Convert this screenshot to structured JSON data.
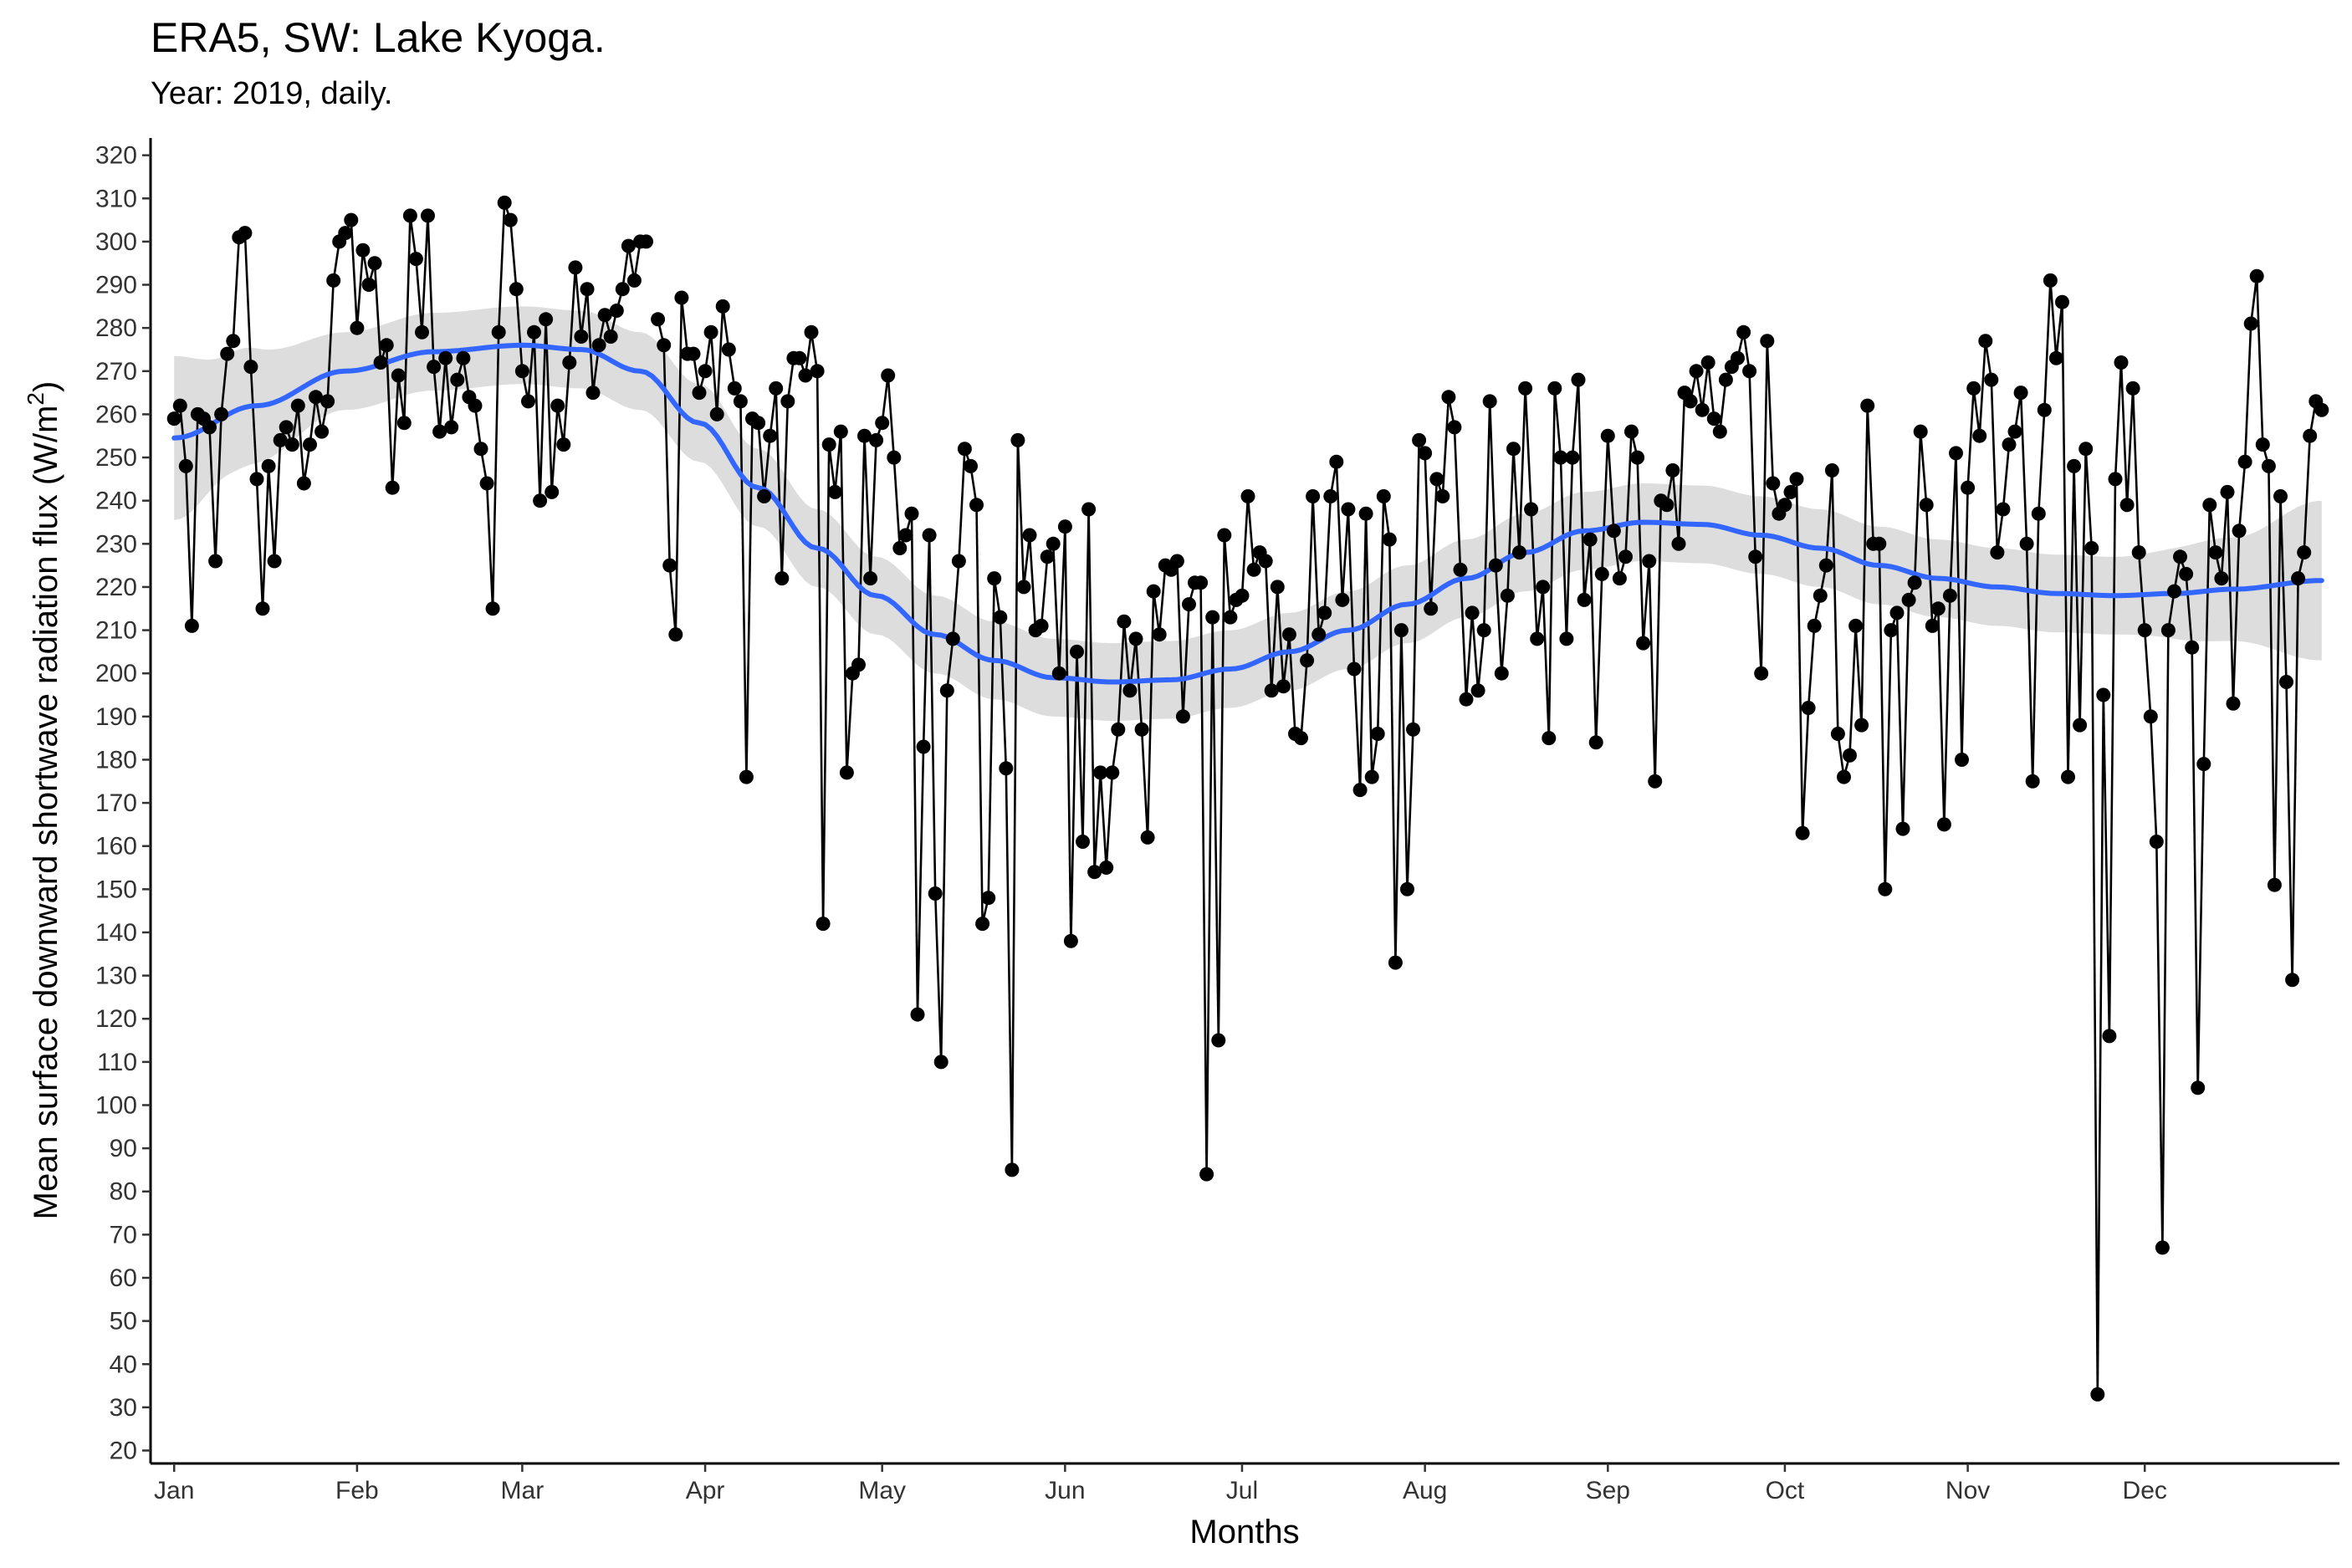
{
  "chart_data": {
    "type": "line",
    "title": "ERA5, SW: Lake Kyoga.",
    "subtitle": "Year: 2019, daily.",
    "xlabel": "Months",
    "ylabel_main": "Mean surface downward shortwave radiation flux (W/m",
    "ylabel_sup": "2",
    "ylabel_close": ")",
    "x_range_days": [
      -3,
      368
    ],
    "ylim": [
      17,
      324
    ],
    "y_ticks": [
      20,
      30,
      40,
      50,
      60,
      70,
      80,
      90,
      100,
      110,
      120,
      130,
      140,
      150,
      160,
      170,
      180,
      190,
      200,
      210,
      220,
      230,
      240,
      250,
      260,
      270,
      280,
      290,
      300,
      310,
      320
    ],
    "x_ticks": [
      {
        "label": "Jan",
        "day": 1
      },
      {
        "label": "Feb",
        "day": 32
      },
      {
        "label": "Mar",
        "day": 60
      },
      {
        "label": "Apr",
        "day": 91
      },
      {
        "label": "May",
        "day": 121
      },
      {
        "label": "Jun",
        "day": 152
      },
      {
        "label": "Jul",
        "day": 182
      },
      {
        "label": "Aug",
        "day": 213
      },
      {
        "label": "Sep",
        "day": 244
      },
      {
        "label": "Oct",
        "day": 274
      },
      {
        "label": "Nov",
        "day": 305
      },
      {
        "label": "Dec",
        "day": 335
      }
    ],
    "grid": false,
    "series": [
      {
        "type": "line+points",
        "color": "#000000",
        "values": [
          259,
          262,
          248,
          211,
          260,
          259,
          257,
          226,
          260,
          274,
          277,
          301,
          302,
          271,
          245,
          215,
          248,
          226,
          254,
          257,
          253,
          262,
          244,
          253,
          264,
          256,
          263,
          291,
          300,
          302,
          305,
          280,
          298,
          290,
          295,
          272,
          276,
          243,
          269,
          258,
          306,
          296,
          279,
          306,
          271,
          256,
          273,
          257,
          268,
          273,
          264,
          262,
          252,
          244,
          215,
          279,
          309,
          305,
          289,
          270,
          263,
          279,
          240,
          282,
          242,
          262,
          253,
          272,
          294,
          278,
          289,
          265,
          276,
          283,
          278,
          284,
          289,
          299,
          291,
          300,
          300
        ]
      },
      {
        "name_hidden": "segment2",
        "values_cont": "see script"
      }
    ],
    "smooth": {
      "type": "loess",
      "color": "#3366FF",
      "band_color": "#D9D9D9",
      "points": [
        [
          1,
          254.5
        ],
        [
          15,
          262
        ],
        [
          30,
          270
        ],
        [
          45,
          274.5
        ],
        [
          60,
          276
        ],
        [
          70,
          275
        ],
        [
          80,
          270
        ],
        [
          90,
          258
        ],
        [
          100,
          243
        ],
        [
          110,
          229
        ],
        [
          120,
          218
        ],
        [
          130,
          209
        ],
        [
          140,
          203
        ],
        [
          150,
          199
        ],
        [
          160,
          198
        ],
        [
          170,
          198.5
        ],
        [
          180,
          201
        ],
        [
          190,
          205
        ],
        [
          200,
          210
        ],
        [
          210,
          216
        ],
        [
          220,
          222
        ],
        [
          230,
          228
        ],
        [
          240,
          233
        ],
        [
          250,
          235
        ],
        [
          260,
          234.5
        ],
        [
          270,
          232
        ],
        [
          280,
          229
        ],
        [
          290,
          225
        ],
        [
          300,
          222
        ],
        [
          310,
          220
        ],
        [
          320,
          218.5
        ],
        [
          330,
          218
        ],
        [
          340,
          218.5
        ],
        [
          350,
          219.5
        ],
        [
          365,
          221.5
        ]
      ],
      "band_halfwidth": [
        [
          1,
          19
        ],
        [
          10,
          14
        ],
        [
          30,
          9
        ],
        [
          60,
          9
        ],
        [
          90,
          9
        ],
        [
          120,
          9
        ],
        [
          150,
          9
        ],
        [
          180,
          9
        ],
        [
          210,
          9
        ],
        [
          240,
          9
        ],
        [
          270,
          9
        ],
        [
          300,
          9
        ],
        [
          330,
          9
        ],
        [
          350,
          12
        ],
        [
          365,
          18.5
        ]
      ]
    }
  },
  "daily_values": [
    259,
    262,
    248,
    211,
    260,
    259,
    257,
    226,
    260,
    274,
    277,
    301,
    302,
    271,
    245,
    215,
    248,
    226,
    254,
    257,
    253,
    262,
    244,
    253,
    264,
    256,
    263,
    291,
    300,
    302,
    305,
    280,
    298,
    290,
    295,
    272,
    276,
    243,
    269,
    258,
    306,
    296,
    279,
    306,
    271,
    256,
    273,
    257,
    268,
    273,
    264,
    262,
    252,
    244,
    215,
    279,
    309,
    305,
    289,
    270,
    263,
    279,
    240,
    282,
    242,
    262,
    253,
    272,
    294,
    278,
    289,
    265,
    276,
    283,
    278,
    284,
    289,
    299,
    291,
    300,
    300,
    null,
    282,
    276,
    225,
    209,
    287,
    274,
    274,
    265,
    270,
    279,
    260,
    285,
    275,
    266,
    263,
    176,
    259,
    258,
    241,
    255,
    266,
    222,
    263,
    273,
    273,
    269,
    279,
    270,
    142,
    253,
    242,
    256,
    177,
    200,
    202,
    255,
    222,
    254,
    258,
    269,
    250,
    229,
    232,
    237,
    121,
    183,
    232,
    149,
    110,
    196,
    208,
    226,
    252,
    248,
    239,
    142,
    148,
    222,
    213,
    178,
    85,
    254,
    220,
    232,
    210,
    211,
    227,
    230,
    200,
    234,
    138,
    205,
    161,
    238,
    154,
    177,
    155,
    177,
    187,
    212,
    196,
    208,
    187,
    162,
    219,
    209,
    225,
    224,
    226,
    190,
    216,
    221,
    221,
    84,
    213,
    115,
    232,
    213,
    217,
    218,
    241,
    224,
    228,
    226,
    196,
    220,
    197,
    209,
    186,
    185,
    203,
    241,
    209,
    214,
    241,
    249,
    217,
    238,
    201,
    173,
    237,
    176,
    186,
    241,
    231,
    133,
    210,
    150,
    187,
    254,
    251,
    215,
    245,
    241,
    264,
    257,
    224,
    194,
    214,
    196,
    210,
    263,
    225,
    200,
    218,
    252,
    228,
    266,
    238,
    208,
    220,
    185,
    266,
    250,
    208,
    250,
    268,
    217,
    231,
    184,
    223,
    255,
    233,
    222,
    227,
    256,
    250,
    207,
    226,
    175,
    240,
    239,
    247,
    230,
    265,
    263,
    270,
    261,
    272,
    259,
    256,
    268,
    271,
    273,
    279,
    270,
    227,
    200,
    277,
    244,
    237,
    239,
    242,
    245,
    163,
    192,
    211,
    218,
    225,
    247,
    186,
    176,
    181,
    211,
    188,
    262,
    230,
    230,
    150,
    210,
    214,
    164,
    217,
    221,
    256,
    239,
    211,
    215,
    165,
    218,
    251,
    180,
    243,
    266,
    255,
    277,
    268,
    228,
    238,
    253,
    256,
    265,
    230,
    175,
    237,
    261,
    291,
    273,
    286,
    176,
    248,
    188,
    252,
    229,
    33,
    195,
    116,
    245,
    272,
    239,
    266,
    228,
    210,
    190,
    161,
    67,
    210,
    219,
    227,
    223,
    206,
    104,
    179,
    239,
    228,
    222,
    242,
    193,
    233,
    249,
    281,
    292,
    253,
    248,
    151,
    241,
    198,
    129,
    222,
    228,
    255,
    263,
    261
  ]
}
